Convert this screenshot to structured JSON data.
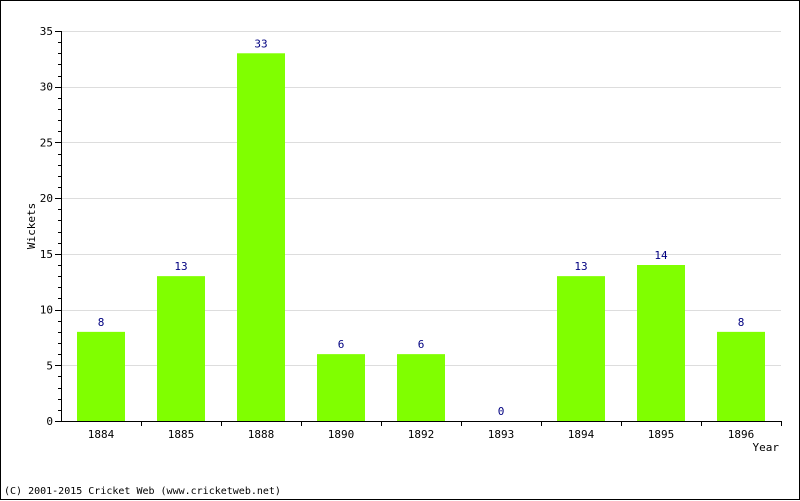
{
  "chart_data": {
    "type": "bar",
    "title": "",
    "xlabel": "Year",
    "ylabel": "Wickets",
    "categories": [
      "1884",
      "1885",
      "1888",
      "1890",
      "1892",
      "1893",
      "1894",
      "1895",
      "1896"
    ],
    "values": [
      8,
      13,
      33,
      6,
      6,
      0,
      13,
      14,
      8
    ],
    "ylim": [
      0,
      35
    ],
    "yticks": [
      0,
      5,
      10,
      15,
      20,
      25,
      30,
      35
    ],
    "grid": true,
    "bar_color": "#80ff00",
    "label_color": "#000080"
  },
  "footer": {
    "copyright": "(C) 2001-2015 Cricket Web (www.cricketweb.net)"
  }
}
